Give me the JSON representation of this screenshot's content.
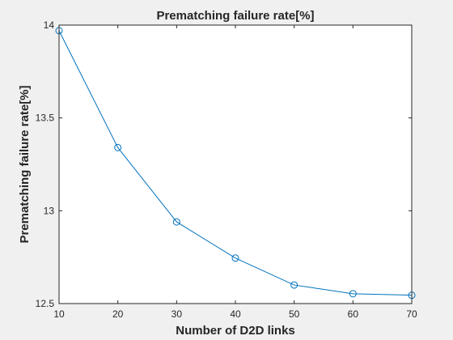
{
  "chart_data": {
    "type": "line",
    "title": "Prematching failure rate[%]",
    "xlabel": "Number of D2D links",
    "ylabel": "Prematching failure rate[%]",
    "xlim": [
      10,
      70
    ],
    "ylim": [
      12.5,
      14
    ],
    "xticks": [
      10,
      20,
      30,
      40,
      50,
      60,
      70
    ],
    "yticks": [
      12.5,
      13,
      13.5,
      14
    ],
    "xtick_labels": [
      "10",
      "20",
      "30",
      "40",
      "50",
      "60",
      "70"
    ],
    "ytick_labels": [
      "12.5",
      "13",
      "13.5",
      "14"
    ],
    "grid": false,
    "box": true,
    "marker": "circle",
    "series": [
      {
        "x": [
          10,
          20,
          30,
          40,
          50,
          60,
          70
        ],
        "values": [
          13.97,
          13.34,
          12.94,
          12.745,
          12.6,
          12.553,
          12.545
        ],
        "color": "#0072bd"
      }
    ]
  },
  "colors": {
    "background": "#f0f0f0",
    "plot_area": "#ffffff",
    "axes": "#262626",
    "line": "#0072bd"
  }
}
